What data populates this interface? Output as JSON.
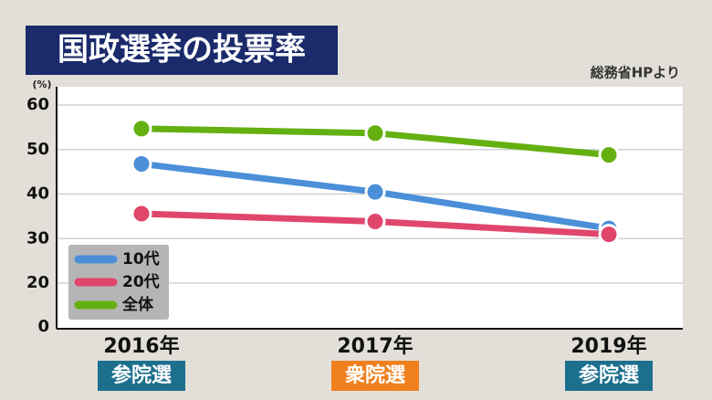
{
  "chart_data": {
    "type": "line",
    "title": "国政選挙の投票率",
    "source": "総務省HPより",
    "y_label": "(%)",
    "categories": [
      "2016年",
      "2017年",
      "2019年"
    ],
    "election": [
      "参院選",
      "衆院選",
      "参院選"
    ],
    "election_colors": [
      "#1d6f8e",
      "#f0801e",
      "#1d6f8e"
    ],
    "series": [
      {
        "name": "10代",
        "color": "#4a8fd8",
        "values": [
          46.78,
          40.49,
          32.28
        ]
      },
      {
        "name": "20代",
        "color": "#e0466b",
        "values": [
          35.6,
          33.85,
          30.96
        ]
      },
      {
        "name": "全体",
        "color": "#64b011",
        "values": [
          54.7,
          53.68,
          48.8
        ]
      }
    ],
    "ylim": [
      10,
      60
    ],
    "yticks": [
      20,
      30,
      40,
      50,
      60
    ],
    "baseline_label": 0,
    "grid": true
  }
}
